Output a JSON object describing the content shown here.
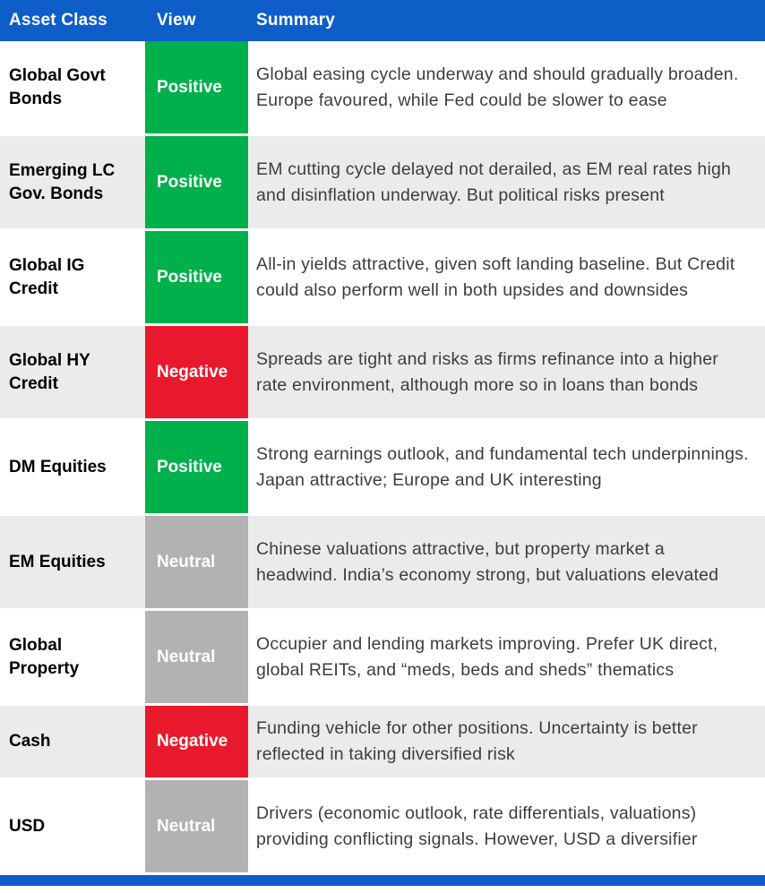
{
  "colors": {
    "header_blue": "#0E5EC8",
    "positive_green": "#00B04B",
    "negative_red": "#E8192C",
    "neutral_gray": "#B2B2B2",
    "row_alt_gray": "#EBEBEB",
    "summary_text": "#3D3D3D"
  },
  "table": {
    "headers": [
      "Asset Class",
      "View",
      "Summary"
    ],
    "rows": [
      {
        "asset_class": "Global Govt Bonds",
        "view": "Positive",
        "view_type": "positive",
        "summary": "Global easing cycle underway and should gradually broaden. Europe favoured, while Fed could be slower to ease"
      },
      {
        "asset_class": "Emerging LC Gov. Bonds",
        "view": "Positive",
        "view_type": "positive",
        "summary": "EM cutting cycle delayed not derailed, as EM real rates high and disinflation underway. But political risks present"
      },
      {
        "asset_class": "Global IG Credit",
        "view": "Positive",
        "view_type": "positive",
        "summary": "All-in yields attractive, given soft landing baseline. But Credit could also perform well in both upsides and downsides"
      },
      {
        "asset_class": "Global HY Credit",
        "view": "Negative",
        "view_type": "negative",
        "summary": "Spreads are tight and risks as firms refinance into a higher rate environment, although more so in loans than bonds"
      },
      {
        "asset_class": "DM Equities",
        "view": "Positive",
        "view_type": "positive",
        "summary": "Strong earnings outlook, and fundamental tech underpinnings. Japan attractive; Europe and UK interesting"
      },
      {
        "asset_class": "EM Equities",
        "view": "Neutral",
        "view_type": "neutral",
        "summary": "Chinese valuations attractive, but property market a headwind. India’s economy strong, but valuations elevated"
      },
      {
        "asset_class": "Global Property",
        "view": "Neutral",
        "view_type": "neutral",
        "summary": "Occupier and lending markets improving. Prefer UK direct, global REITs, and “meds, beds and sheds” thematics"
      },
      {
        "asset_class": "Cash",
        "view": "Negative",
        "view_type": "negative",
        "summary": "Funding vehicle for other positions. Uncertainty is better reflected in taking diversified risk"
      },
      {
        "asset_class": "USD",
        "view": "Neutral",
        "view_type": "neutral",
        "summary": "Drivers (economic outlook, rate differentials, valuations) providing conflicting signals. However, USD a diversifier"
      }
    ]
  }
}
